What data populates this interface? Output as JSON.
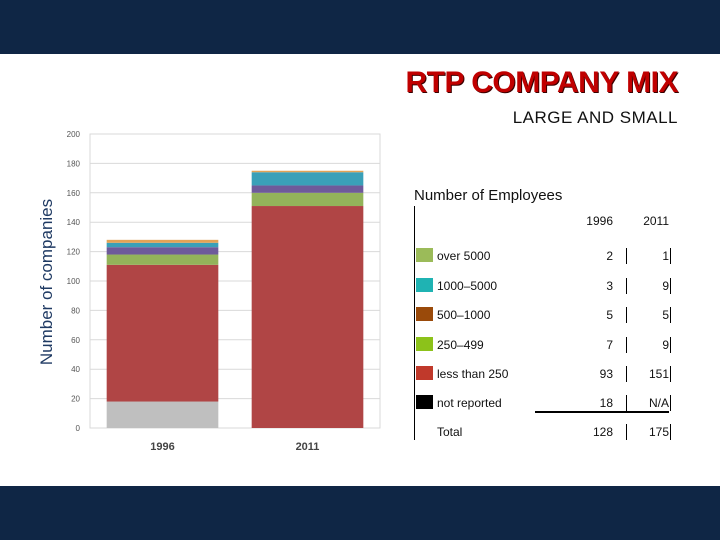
{
  "slide": {
    "title": "RTP COMPANY MIX",
    "subtitle": "LARGE AND SMALL",
    "table_title": "Number of Employees"
  },
  "chart_data": {
    "type": "bar",
    "stacked": true,
    "categories": [
      "1996",
      "2011"
    ],
    "ylabel": "Number of companies",
    "ylim": [
      0,
      200
    ],
    "yticks": [
      0,
      20,
      40,
      60,
      80,
      100,
      120,
      140,
      160,
      180,
      200
    ],
    "grid": true,
    "series": [
      {
        "name": "not reported",
        "values": [
          18,
          0
        ],
        "color": "#bfbfbf"
      },
      {
        "name": "less than 250",
        "values": [
          93,
          151
        ],
        "color": "#b04545"
      },
      {
        "name": "250-499",
        "values": [
          7,
          9
        ],
        "color": "#93b35a"
      },
      {
        "name": "500-1000",
        "values": [
          5,
          5
        ],
        "color": "#6e5a9a"
      },
      {
        "name": "1000-5000",
        "values": [
          3,
          9
        ],
        "color": "#3aa0b8"
      },
      {
        "name": "over 5000",
        "values": [
          2,
          1
        ],
        "color": "#e3a356"
      }
    ]
  },
  "table": {
    "headers": [
      "1996",
      "2011"
    ],
    "rows": [
      {
        "label": "over 5000",
        "v1996": "2",
        "v2011": "1",
        "color": "#9bbb59"
      },
      {
        "label": "1000–5000",
        "v1996": "3",
        "v2011": "9",
        "color": "#1fb3b3"
      },
      {
        "label": "500–1000",
        "v1996": "5",
        "v2011": "5",
        "color": "#9a4a0a"
      },
      {
        "label": "250–499",
        "v1996": "7",
        "v2011": "9",
        "color": "#8cc21a"
      },
      {
        "label": "less than 250",
        "v1996": "93",
        "v2011": "151",
        "color": "#c0392b"
      },
      {
        "label": "not reported",
        "v1996": "18",
        "v2011": "N/A",
        "color": "#000000"
      }
    ],
    "total": {
      "label": "Total",
      "v1996": "128",
      "v2011": "175"
    }
  }
}
